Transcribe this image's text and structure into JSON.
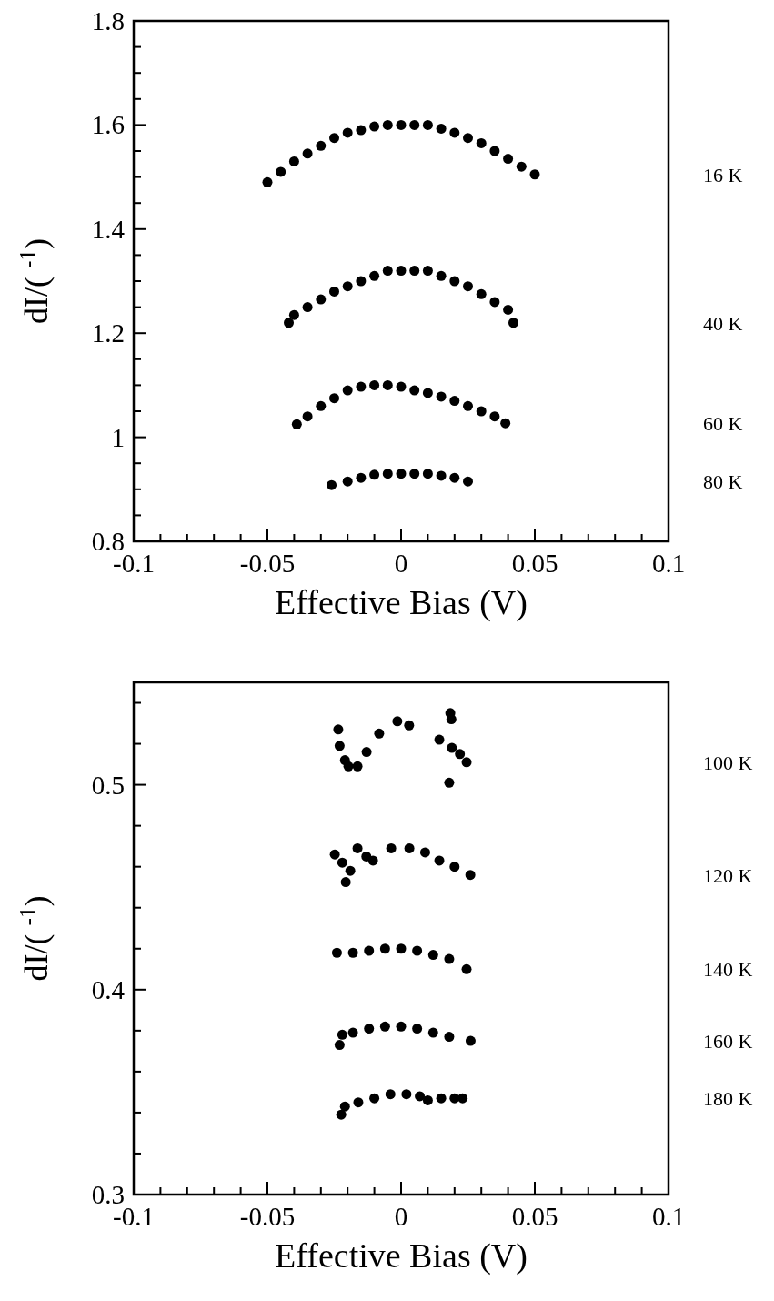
{
  "chart_data": [
    {
      "type": "scatter",
      "xlabel": "Effective Bias (V)",
      "ylabel": "dI/( $^{-1}$)",
      "marker": "circle",
      "grid": false,
      "xlim": [
        -0.1,
        0.1
      ],
      "ylim": [
        0.8,
        1.8
      ],
      "xticks": [
        -0.1,
        {
          "value": -0.09,
          "label": null
        },
        {
          "value": -0.08,
          "label": null
        },
        {
          "value": -0.07,
          "label": null
        },
        {
          "value": -0.06,
          "label": null
        },
        -0.05,
        {
          "value": -0.04,
          "label": null
        },
        {
          "value": -0.03,
          "label": null
        },
        {
          "value": -0.02,
          "label": null
        },
        {
          "value": -0.01,
          "label": null
        },
        0,
        {
          "value": 0.01,
          "label": null
        },
        {
          "value": 0.02,
          "label": null
        },
        {
          "value": 0.03,
          "label": null
        },
        {
          "value": 0.04,
          "label": null
        },
        0.05,
        {
          "value": 0.06,
          "label": null
        },
        {
          "value": 0.07,
          "label": null
        },
        {
          "value": 0.08,
          "label": null
        },
        {
          "value": 0.09,
          "label": null
        },
        0.1
      ],
      "yticks": [
        0.8,
        {
          "value": 0.85,
          "label": null
        },
        {
          "value": 0.9,
          "label": null
        },
        {
          "value": 0.95,
          "label": null
        },
        1,
        {
          "value": 1.05,
          "label": null
        },
        {
          "value": 1.1,
          "label": null
        },
        {
          "value": 1.15,
          "label": null
        },
        1.2,
        {
          "value": 1.25,
          "label": null
        },
        {
          "value": 1.3,
          "label": null
        },
        {
          "value": 1.35,
          "label": null
        },
        1.4,
        {
          "value": 1.45,
          "label": null
        },
        {
          "value": 1.5,
          "label": null
        },
        {
          "value": 1.55,
          "label": null
        },
        1.6,
        {
          "value": 1.65,
          "label": null
        },
        {
          "value": 1.7,
          "label": null
        },
        {
          "value": 1.75,
          "label": null
        },
        1.8
      ],
      "series": [
        {
          "name": "16 K",
          "color": "#000000",
          "x": [
            -0.05,
            -0.045,
            -0.04,
            -0.035,
            -0.03,
            -0.025,
            -0.02,
            -0.015,
            -0.01,
            -0.005,
            0,
            0.005,
            0.01,
            0.015,
            0.02,
            0.025,
            0.03,
            0.035,
            0.04,
            0.045,
            0.05
          ],
          "values": [
            1.49,
            1.51,
            1.53,
            1.545,
            1.56,
            1.575,
            1.585,
            1.59,
            1.597,
            1.6,
            1.6,
            1.6,
            1.6,
            1.593,
            1.585,
            1.575,
            1.565,
            1.55,
            1.535,
            1.52,
            1.505
          ]
        },
        {
          "name": "40 K",
          "color": "#000000",
          "x": [
            -0.042,
            -0.04,
            -0.035,
            -0.03,
            -0.025,
            -0.02,
            -0.015,
            -0.01,
            -0.005,
            0,
            0.005,
            0.01,
            0.015,
            0.02,
            0.025,
            0.03,
            0.035,
            0.04,
            0.042
          ],
          "values": [
            1.22,
            1.235,
            1.25,
            1.265,
            1.28,
            1.29,
            1.3,
            1.31,
            1.32,
            1.32,
            1.32,
            1.32,
            1.31,
            1.3,
            1.29,
            1.275,
            1.26,
            1.245,
            1.22
          ]
        },
        {
          "name": "60 K",
          "color": "#000000",
          "x": [
            -0.039,
            -0.035,
            -0.03,
            -0.025,
            -0.02,
            -0.015,
            -0.01,
            -0.005,
            0,
            0.005,
            0.01,
            0.015,
            0.02,
            0.025,
            0.03,
            0.035,
            0.039
          ],
          "values": [
            1.025,
            1.04,
            1.06,
            1.075,
            1.09,
            1.097,
            1.1,
            1.1,
            1.097,
            1.09,
            1.085,
            1.078,
            1.07,
            1.06,
            1.05,
            1.04,
            1.027
          ]
        },
        {
          "name": "80 K",
          "color": "#000000",
          "x": [
            -0.026,
            -0.02,
            -0.015,
            -0.01,
            -0.005,
            0,
            0.005,
            0.01,
            0.015,
            0.02,
            0.025
          ],
          "values": [
            0.908,
            0.915,
            0.922,
            0.928,
            0.93,
            0.93,
            0.93,
            0.93,
            0.926,
            0.922,
            0.915
          ]
        }
      ]
    },
    {
      "type": "scatter",
      "xlabel": "Effective Bias (V)",
      "ylabel": "dI/( $^{-1}$)",
      "marker": "circle",
      "grid": false,
      "xlim": [
        -0.1,
        0.1
      ],
      "ylim": [
        0.3,
        0.55
      ],
      "xticks": [
        -0.1,
        {
          "value": -0.09,
          "label": null
        },
        {
          "value": -0.08,
          "label": null
        },
        {
          "value": -0.07,
          "label": null
        },
        {
          "value": -0.06,
          "label": null
        },
        -0.05,
        {
          "value": -0.04,
          "label": null
        },
        {
          "value": -0.03,
          "label": null
        },
        {
          "value": -0.02,
          "label": null
        },
        {
          "value": -0.01,
          "label": null
        },
        0,
        {
          "value": 0.01,
          "label": null
        },
        {
          "value": 0.02,
          "label": null
        },
        {
          "value": 0.03,
          "label": null
        },
        {
          "value": 0.04,
          "label": null
        },
        0.05,
        {
          "value": 0.06,
          "label": null
        },
        {
          "value": 0.07,
          "label": null
        },
        {
          "value": 0.08,
          "label": null
        },
        {
          "value": 0.09,
          "label": null
        },
        0.1
      ],
      "yticks": [
        0.3,
        {
          "value": 0.32,
          "label": null
        },
        {
          "value": 0.34,
          "label": null
        },
        {
          "value": 0.36,
          "label": null
        },
        {
          "value": 0.38,
          "label": null
        },
        0.4,
        {
          "value": 0.42,
          "label": null
        },
        {
          "value": 0.44,
          "label": null
        },
        {
          "value": 0.46,
          "label": null
        },
        {
          "value": 0.48,
          "label": null
        },
        0.5,
        {
          "value": 0.52,
          "label": null
        },
        {
          "value": 0.54,
          "label": null
        }
      ],
      "series": [
        {
          "name": "100 K",
          "color": "#000000",
          "x": [
            -0.0235,
            -0.023,
            -0.021,
            -0.0197,
            -0.0163,
            -0.0129,
            -0.0082,
            -0.0014,
            0.003,
            0.0143,
            0.0184,
            0.0188,
            0.018,
            0.019,
            0.022,
            0.0245
          ],
          "values": [
            0.527,
            0.519,
            0.512,
            0.509,
            0.509,
            0.516,
            0.525,
            0.531,
            0.529,
            0.522,
            0.535,
            0.532,
            0.501,
            0.518,
            0.515,
            0.511
          ]
        },
        {
          "name": "120 K",
          "color": "#000000",
          "x": [
            -0.0248,
            -0.022,
            -0.0207,
            -0.019,
            -0.0163,
            -0.013,
            -0.0105,
            -0.0037,
            0.0031,
            0.009,
            0.0143,
            0.02,
            0.0259
          ],
          "values": [
            0.466,
            0.462,
            0.4525,
            0.458,
            0.469,
            0.465,
            0.463,
            0.469,
            0.469,
            0.467,
            0.463,
            0.46,
            0.456
          ]
        },
        {
          "name": "140 K",
          "color": "#000000",
          "x": [
            -0.024,
            -0.018,
            -0.012,
            -0.006,
            0,
            0.006,
            0.012,
            0.018,
            0.0245
          ],
          "values": [
            0.418,
            0.418,
            0.419,
            0.42,
            0.42,
            0.419,
            0.417,
            0.415,
            0.41
          ]
        },
        {
          "name": "160 K",
          "color": "#000000",
          "x": [
            -0.023,
            -0.022,
            -0.018,
            -0.012,
            -0.006,
            0,
            0.006,
            0.012,
            0.018,
            0.026
          ],
          "values": [
            0.373,
            0.378,
            0.379,
            0.381,
            0.382,
            0.382,
            0.381,
            0.379,
            0.377,
            0.375
          ]
        },
        {
          "name": "180 K",
          "color": "#000000",
          "x": [
            -0.0224,
            -0.021,
            -0.016,
            -0.01,
            -0.004,
            0.002,
            0.007,
            0.01,
            0.015,
            0.02,
            0.023
          ],
          "values": [
            0.339,
            0.343,
            0.345,
            0.347,
            0.349,
            0.349,
            0.348,
            0.346,
            0.347,
            0.347,
            0.347
          ]
        }
      ]
    }
  ]
}
